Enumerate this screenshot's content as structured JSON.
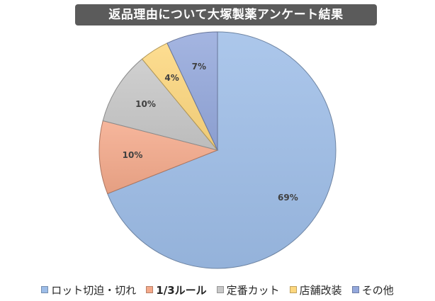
{
  "chart_data": {
    "type": "pie",
    "title": "返品理由について大塚製薬アンケート結果",
    "slices": [
      {
        "name": "ロット切迫・切れ",
        "value": 69,
        "label": "69%",
        "color": "#9dbde8"
      },
      {
        "name": "1/3ルール",
        "value": 10,
        "label": "10%",
        "color": "#f4a98a"
      },
      {
        "name": "定番カット",
        "value": 10,
        "label": "10%",
        "color": "#c8c8c8"
      },
      {
        "name": "店舗改装",
        "value": 4,
        "label": "4%",
        "color": "#fdd77e"
      },
      {
        "name": "その他",
        "value": 7,
        "label": "7%",
        "color": "#94a8dc"
      }
    ],
    "legend_position": "bottom",
    "start_angle_deg": 0,
    "direction": "clockwise"
  }
}
